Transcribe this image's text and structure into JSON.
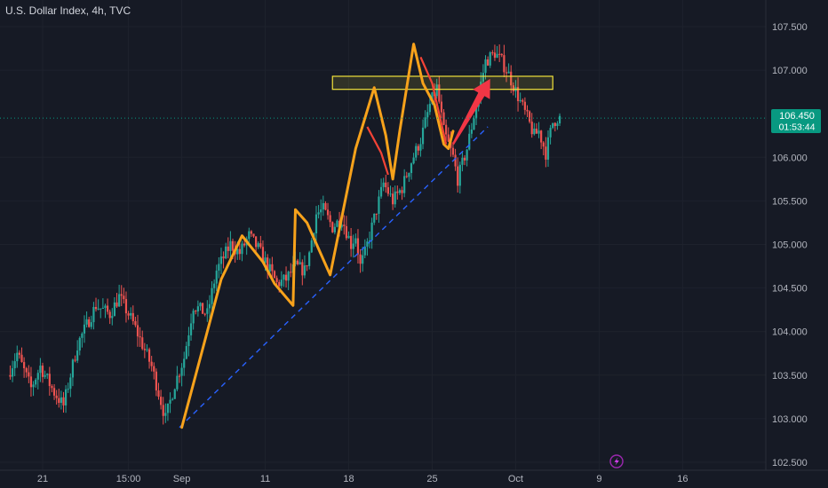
{
  "header": {
    "title": "U.S. Dollar Index, 4h, TVC"
  },
  "price_badge": {
    "price": "106.450",
    "countdown": "01:53:44"
  },
  "icons": {
    "bottom": "lightning-icon"
  },
  "colors": {
    "background": "#161a25",
    "up_candle": "#26a69a",
    "down_candle": "#ef5350",
    "orange_path": "#f7a21b",
    "red_path": "#f44336",
    "trendline": "#2962ff",
    "zone_border": "#f2e33a",
    "badge": "#089981",
    "arrow": "#f23645"
  },
  "chart_data": {
    "type": "candlestick",
    "title": "U.S. Dollar Index, 4h, TVC",
    "y_axis": {
      "ticks": [
        "107.500",
        "107.000",
        "106.000",
        "105.500",
        "105.000",
        "104.500",
        "104.000",
        "103.500",
        "103.000",
        "102.500"
      ],
      "range": [
        102.45,
        107.75
      ]
    },
    "x_axis": {
      "ticks": [
        "21",
        "15:00",
        "Sep",
        "11",
        "18",
        "25",
        "Oct",
        "9",
        "16"
      ]
    },
    "current_price": 106.45,
    "anchors": [
      {
        "label": "21",
        "t": 0
      },
      {
        "label": "15:00",
        "t": 18.5
      },
      {
        "label": "Sep",
        "t": 30
      },
      {
        "label": "11",
        "t": 48
      },
      {
        "label": "18",
        "t": 66
      },
      {
        "label": "25",
        "t": 84
      },
      {
        "label": "Oct",
        "t": 102
      },
      {
        "label": "9",
        "t": 120
      },
      {
        "label": "16",
        "t": 138
      }
    ],
    "series_waypoints": [
      [
        -7,
        103.5
      ],
      [
        -5,
        103.75
      ],
      [
        -2,
        103.35
      ],
      [
        0,
        103.6
      ],
      [
        3,
        103.3
      ],
      [
        5,
        103.15
      ],
      [
        8,
        103.85
      ],
      [
        12,
        104.3
      ],
      [
        15,
        104.2
      ],
      [
        17,
        104.4
      ],
      [
        20,
        104.1
      ],
      [
        24,
        103.6
      ],
      [
        27,
        103.0
      ],
      [
        29,
        103.4
      ],
      [
        31,
        103.7
      ],
      [
        33,
        104.3
      ],
      [
        36,
        104.2
      ],
      [
        38,
        104.7
      ],
      [
        41,
        105.0
      ],
      [
        43,
        104.9
      ],
      [
        45,
        105.1
      ],
      [
        47,
        104.95
      ],
      [
        49,
        104.75
      ],
      [
        51,
        104.55
      ],
      [
        53,
        104.6
      ],
      [
        55,
        104.75
      ],
      [
        57,
        104.7
      ],
      [
        58,
        104.9
      ],
      [
        59.5,
        105.35
      ],
      [
        61,
        105.4
      ],
      [
        63,
        105.2
      ],
      [
        65,
        105.3
      ],
      [
        67,
        105.0
      ],
      [
        68,
        105.1
      ],
      [
        69,
        104.75
      ],
      [
        70,
        104.9
      ],
      [
        72,
        105.3
      ],
      [
        74,
        105.7
      ],
      [
        76,
        105.5
      ],
      [
        78,
        105.65
      ],
      [
        80,
        105.95
      ],
      [
        82,
        106.2
      ],
      [
        84,
        106.6
      ],
      [
        85.5,
        106.8
      ],
      [
        87,
        106.3
      ],
      [
        89,
        106.0
      ],
      [
        90,
        105.75
      ],
      [
        92,
        106.1
      ],
      [
        94,
        106.6
      ],
      [
        96,
        107.1
      ],
      [
        98,
        107.2
      ],
      [
        99.5,
        107.1
      ],
      [
        101,
        106.95
      ],
      [
        103,
        106.7
      ],
      [
        105,
        106.45
      ],
      [
        106.5,
        106.25
      ],
      [
        107.5,
        106.3
      ],
      [
        109,
        106.05
      ],
      [
        110.5,
        106.4
      ],
      [
        111.5,
        106.45
      ]
    ],
    "orange_path": [
      [
        30,
        102.9
      ],
      [
        38.5,
        104.6
      ],
      [
        43,
        105.1
      ],
      [
        47.5,
        104.8
      ],
      [
        50,
        104.55
      ],
      [
        54,
        104.3
      ],
      [
        54.5,
        105.4
      ],
      [
        57,
        105.25
      ],
      [
        62,
        104.65
      ],
      [
        67.5,
        106.1
      ],
      [
        71.5,
        106.8
      ],
      [
        74,
        106.25
      ],
      [
        75.5,
        105.75
      ],
      [
        77,
        106.3
      ],
      [
        80,
        107.3
      ],
      [
        82,
        106.85
      ],
      [
        84.5,
        106.6
      ],
      [
        86.5,
        106.15
      ],
      [
        87.5,
        106.1
      ],
      [
        88.5,
        106.3
      ]
    ],
    "red_segments": [
      [
        [
          70,
          106.35
        ],
        [
          73,
          106.05
        ],
        [
          74.5,
          105.8
        ]
      ],
      [
        [
          81.5,
          107.15
        ],
        [
          84,
          106.85
        ],
        [
          87,
          106.15
        ]
      ]
    ],
    "trendline": {
      "from": [
        29.5,
        102.9
      ],
      "to": [
        96,
        106.35
      ]
    },
    "resistance_zone": {
      "t_start": 62.5,
      "t_end": 110,
      "low": 106.78,
      "high": 106.93
    },
    "projection_arrow": {
      "from": [
        88.5,
        106.15
      ],
      "to": [
        96.5,
        106.9
      ]
    }
  }
}
